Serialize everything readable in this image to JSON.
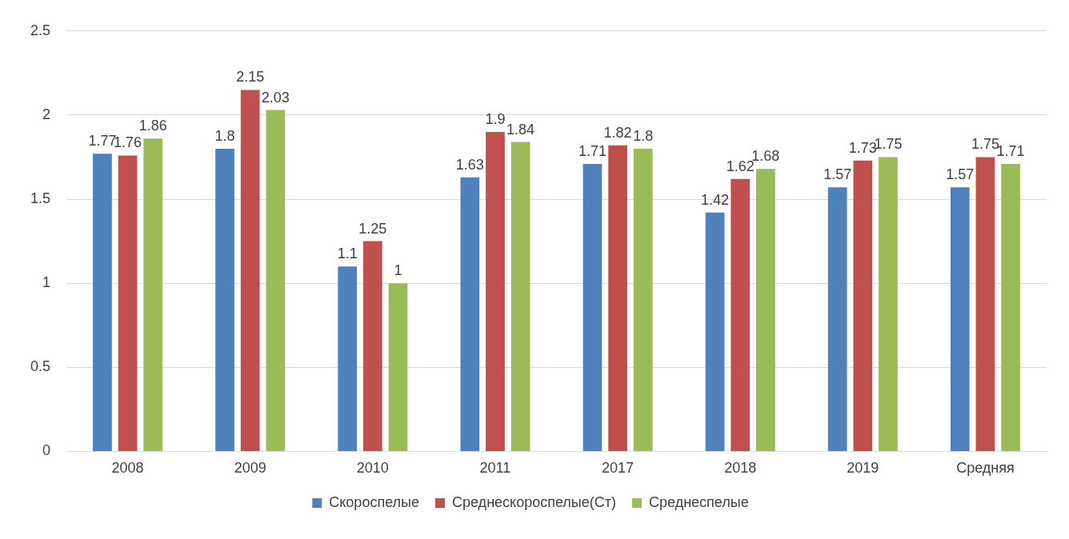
{
  "chart_data": {
    "type": "bar",
    "categories": [
      "2008",
      "2009",
      "2010",
      "2011",
      "2017",
      "2018",
      "2019",
      "Средняя"
    ],
    "series": [
      {
        "name": "Скороспелые",
        "color": "#4f81bd",
        "values": [
          1.77,
          1.8,
          1.1,
          1.63,
          1.71,
          1.42,
          1.57,
          1.57
        ]
      },
      {
        "name": "Среднескороспелые(Ст)",
        "color": "#c0504d",
        "values": [
          1.76,
          2.15,
          1.25,
          1.9,
          1.82,
          1.62,
          1.73,
          1.75
        ]
      },
      {
        "name": "Среднеспелые",
        "color": "#9bbb59",
        "values": [
          1.86,
          2.03,
          1,
          1.84,
          1.8,
          1.68,
          1.75,
          1.71
        ]
      }
    ],
    "ylim": [
      0,
      2.5
    ],
    "yticks": [
      0,
      0.5,
      1,
      1.5,
      2,
      2.5
    ],
    "grid": "y",
    "legend": "bottom",
    "data_labels": true
  }
}
